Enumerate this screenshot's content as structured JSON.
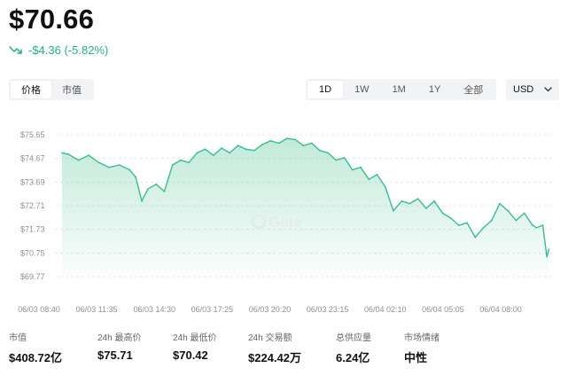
{
  "header": {
    "price": "$70.66",
    "change": "-$4.36 (-5.82%)",
    "change_color": "#22b07d",
    "change_icon": "trend-down-icon"
  },
  "metric_tabs": [
    {
      "label": "价格",
      "active": true
    },
    {
      "label": "市值",
      "active": false
    }
  ],
  "range_tabs": [
    {
      "label": "1D",
      "active": true
    },
    {
      "label": "1W",
      "active": false
    },
    {
      "label": "1M",
      "active": false
    },
    {
      "label": "1Y",
      "active": false
    },
    {
      "label": "全部",
      "active": false
    }
  ],
  "currency": {
    "value": "USD",
    "icon": "chevron-down-icon"
  },
  "watermark": "Gate",
  "stats": [
    {
      "label": "市值",
      "value": "$408.72亿"
    },
    {
      "label": "24h 最高价",
      "value": "$75.71"
    },
    {
      "label": "24h 最低价",
      "value": "$70.42"
    },
    {
      "label": "24h 交易额",
      "value": "$224.42万"
    },
    {
      "label": "总供应量",
      "value": "6.24亿"
    },
    {
      "label": "市场情绪",
      "value": "中性"
    }
  ],
  "chart_data": {
    "type": "area",
    "line_color": "#3bbd8a",
    "grid": true,
    "xlabels": [
      "06/03 08:40",
      "06/03 11:35",
      "06/03 14:30",
      "06/03 17:25",
      "06/03 20:20",
      "06/03 23:15",
      "06/04 02:10",
      "06/04 05:05",
      "06/04 08:00"
    ],
    "ylabels": [
      "$75.65",
      "$74.67",
      "$73.69",
      "$72.71",
      "$71.73",
      "$70.75",
      "$69.77"
    ],
    "yticks": [
      75.65,
      74.67,
      73.69,
      72.71,
      71.73,
      70.75,
      69.77
    ],
    "ylim": [
      69.77,
      75.65
    ],
    "xlim": [
      0,
      24
    ],
    "x": [
      0,
      0.3,
      0.8,
      1.3,
      1.8,
      2.3,
      2.8,
      3.3,
      3.6,
      3.9,
      4.2,
      4.6,
      5.0,
      5.4,
      5.8,
      6.2,
      6.6,
      7.0,
      7.4,
      7.8,
      8.2,
      8.6,
      9.0,
      9.4,
      9.8,
      10.2,
      10.6,
      11.0,
      11.4,
      11.8,
      12.2,
      12.6,
      13.0,
      13.4,
      13.8,
      14.2,
      14.6,
      15.0,
      15.4,
      15.8,
      16.2,
      16.6,
      17.0,
      17.4,
      17.8,
      18.2,
      18.6,
      19.0,
      19.4,
      19.8,
      20.2,
      20.6,
      21.0,
      21.4,
      21.8,
      22.2,
      22.6,
      23.0,
      23.2,
      23.5,
      23.7,
      23.8
    ],
    "y": [
      74.9,
      74.85,
      74.6,
      74.8,
      74.5,
      74.3,
      74.4,
      74.2,
      73.9,
      72.9,
      73.4,
      73.6,
      73.3,
      74.4,
      74.6,
      74.5,
      74.9,
      75.05,
      74.8,
      75.1,
      74.9,
      75.2,
      75.05,
      75.0,
      75.25,
      75.4,
      75.3,
      75.5,
      75.45,
      75.2,
      75.3,
      75.0,
      74.9,
      74.6,
      74.7,
      74.2,
      74.3,
      73.8,
      74.0,
      73.5,
      72.5,
      72.9,
      72.8,
      73.0,
      72.6,
      72.9,
      72.4,
      72.2,
      71.9,
      72.0,
      71.4,
      71.8,
      72.1,
      72.8,
      72.5,
      72.1,
      72.4,
      71.9,
      71.8,
      71.9,
      70.6,
      70.9
    ]
  }
}
